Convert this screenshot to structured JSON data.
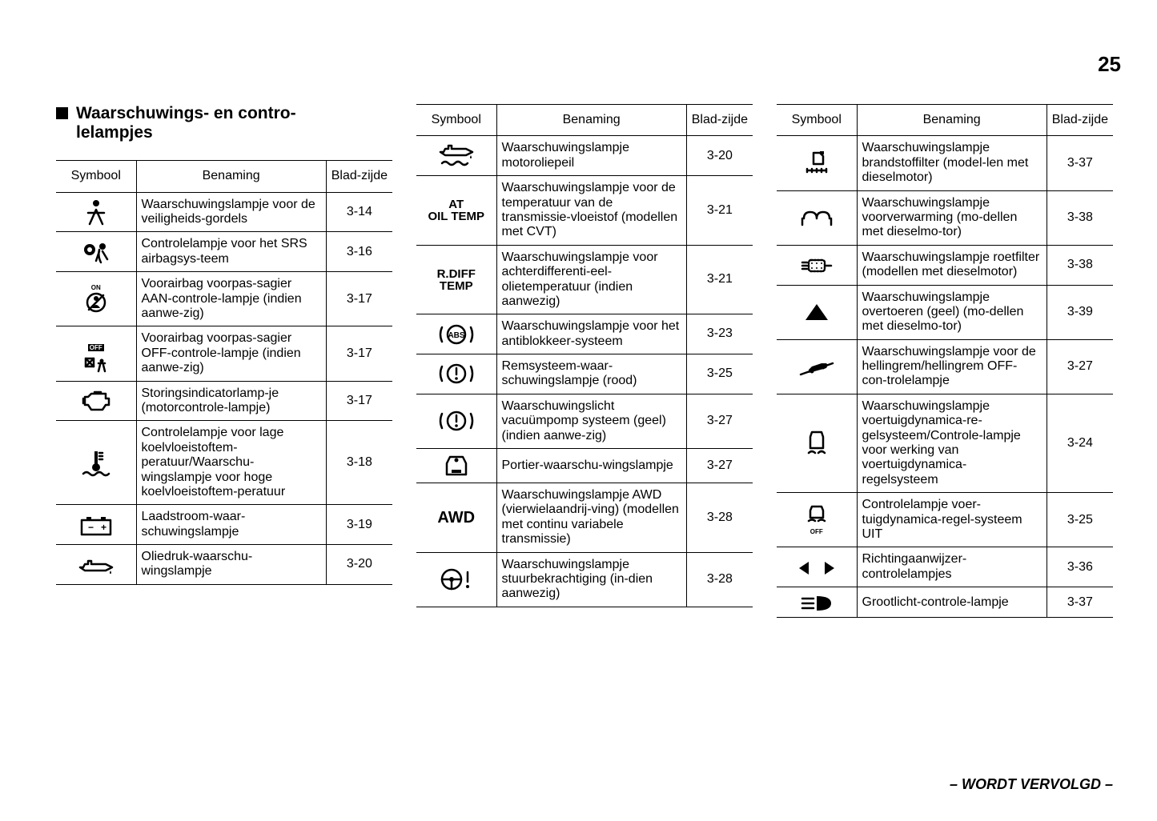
{
  "page_number": "25",
  "section_title": "Waarschuwings- en contro-lelampjes",
  "footer": "– WORDT VERVOLGD –",
  "headers": {
    "symbol": "Symbool",
    "name": "Benaming",
    "page": "Blad-zijde"
  },
  "col1_rows": [
    {
      "icon": "seatbelt",
      "name": "Waarschuwingslampje voor de veiligheids-gordels",
      "page": "3-14"
    },
    {
      "icon": "airbag",
      "name": "Controlelampje voor het SRS airbagsys-teem",
      "page": "3-16"
    },
    {
      "icon": "airbag-on",
      "name": "Voorairbag voorpas-sagier AAN-controle-lampje (indien aanwe-zig)",
      "page": "3-17"
    },
    {
      "icon": "airbag-off",
      "name": "Voorairbag voorpas-sagier OFF-controle-lampje (indien aanwe-zig)",
      "page": "3-17"
    },
    {
      "icon": "engine",
      "name": "Storingsindicatorlamp-je (motorcontrole-lampje)",
      "page": "3-17"
    },
    {
      "icon": "coolant",
      "name": "Controlelampje voor lage koelvloeistoftem-peratuur/Waarschu-wingslampje voor hoge koelvloeistoftem-peratuur",
      "page": "3-18"
    },
    {
      "icon": "battery",
      "name": "Laadstroom-waar-schuwingslampje",
      "page": "3-19"
    },
    {
      "icon": "oil-pressure",
      "name": "Oliedruk-waarschu-wingslampje",
      "page": "3-20"
    }
  ],
  "col2_rows": [
    {
      "icon": "oil-level",
      "name": "Waarschuwingslampje motoroliepeil",
      "page": "3-20"
    },
    {
      "icon": "at-oil-temp",
      "text": "AT OIL TEMP",
      "name": "Waarschuwingslampje voor de temperatuur van de transmissie-vloeistof (modellen met CVT)",
      "page": "3-21"
    },
    {
      "icon": "r-diff-temp",
      "text": "R.DIFF TEMP",
      "name": "Waarschuwingslampje voor achterdifferenti-eel-olietemperatuur (indien aanwezig)",
      "page": "3-21"
    },
    {
      "icon": "abs",
      "name": "Waarschuwingslampje voor het antiblokkeer-systeem",
      "page": "3-23"
    },
    {
      "icon": "brake",
      "name": "Remsysteem-waar-schuwingslampje (rood)",
      "page": "3-25"
    },
    {
      "icon": "vacuum",
      "name": "Waarschuwingslicht vacuümpomp systeem (geel)(indien aanwe-zig)",
      "page": "3-27"
    },
    {
      "icon": "door",
      "name": "Portier-waarschu-wingslampje",
      "page": "3-27"
    },
    {
      "icon": "awd",
      "text": "AWD",
      "name": "Waarschuwingslampje AWD (vierwielaandrij-ving) (modellen met continu variabele transmissie)",
      "page": "3-28"
    },
    {
      "icon": "steering",
      "name": "Waarschuwingslampje stuurbekrachtiging (in-dien aanwezig)",
      "page": "3-28"
    }
  ],
  "col3_rows": [
    {
      "icon": "fuel-filter",
      "name": "Waarschuwingslampje brandstoffilter (model-len met dieselmotor)",
      "page": "3-37"
    },
    {
      "icon": "glow-plug",
      "name": "Waarschuwingslampje voorverwarming (mo-dellen met dieselmo-tor)",
      "page": "3-38"
    },
    {
      "icon": "dpf",
      "name": "Waarschuwingslampje roetfilter (modellen met dieselmotor)",
      "page": "3-38"
    },
    {
      "icon": "overrev",
      "name": "Waarschuwingslampje overtoeren (geel) (mo-dellen met dieselmo-tor)",
      "page": "3-39"
    },
    {
      "icon": "hill",
      "name": "Waarschuwingslampje voor de hellingrem/hellingrem OFF-con-trolelampje",
      "page": "3-27"
    },
    {
      "icon": "vdc",
      "name": "Waarschuwingslampje voertuigdynamica-re-gelsysteem/Controle-lampje voor werking van voertuigdynamica-regelsysteem",
      "page": "3-24"
    },
    {
      "icon": "vdc-off",
      "name": "Controlelampje voer-tuigdynamica-regel-systeem UIT",
      "page": "3-25"
    },
    {
      "icon": "turn-signal",
      "name": "Richtingaanwijzer-controlelampjes",
      "page": "3-36"
    },
    {
      "icon": "high-beam",
      "name": "Grootlicht-controle-lampje",
      "page": "3-37"
    }
  ]
}
